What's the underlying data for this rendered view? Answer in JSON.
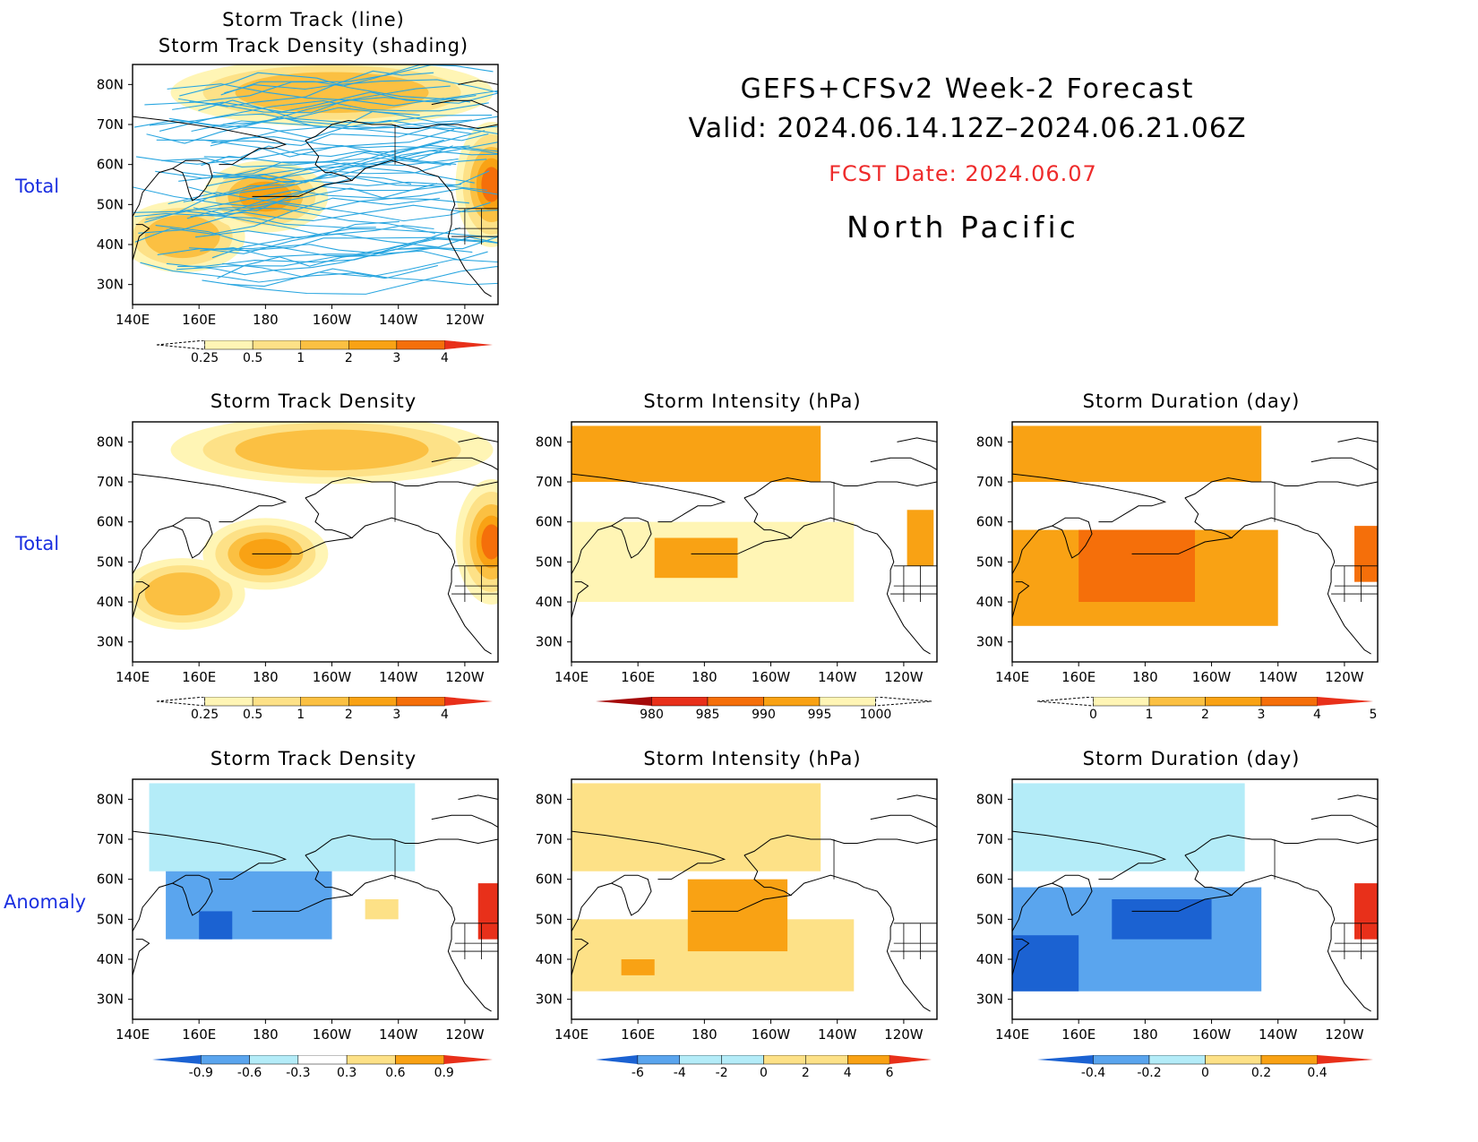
{
  "header": {
    "line1": "GEFS+CFSv2 Week-2 Forecast",
    "line2": "Valid: 2024.06.14.12Z–2024.06.21.06Z",
    "fcst": "FCST Date: 2024.06.07",
    "region": "North Pacific"
  },
  "row_labels": {
    "total1": "Total",
    "total2": "Total",
    "anomaly": "Anomaly"
  },
  "axes": {
    "x_ticks": [
      "140E",
      "160E",
      "180",
      "160W",
      "140W",
      "120W"
    ],
    "y_ticks": [
      "80N",
      "70N",
      "60N",
      "50N",
      "40N",
      "30N"
    ]
  },
  "colors": {
    "lt_yellow": "#fff5b5",
    "yellow": "#fde187",
    "lt_orange": "#fbc042",
    "orange": "#f9a214",
    "dk_orange": "#f56f0a",
    "red": "#e8301a",
    "dk_red": "#a50a0a",
    "lt_blue": "#b4ecf8",
    "blue": "#5aa5ee",
    "dk_blue": "#1b62d2",
    "track": "#29a6e0"
  },
  "panels": {
    "p0": {
      "title1": "Storm Track (line)",
      "title2": "Storm Track Density (shading)"
    },
    "p1": {
      "title": "Storm Track Density"
    },
    "p2": {
      "title": "Storm Intensity (hPa)"
    },
    "p3": {
      "title": "Storm Duration (day)"
    },
    "p4": {
      "title": "Storm Track Density"
    },
    "p5": {
      "title": "Storm Intensity (hPa)"
    },
    "p6": {
      "title": "Storm Duration (day)"
    }
  },
  "colorbars": {
    "density": [
      "0.25",
      "0.5",
      "1",
      "2",
      "3",
      "4"
    ],
    "intensity": [
      "980",
      "985",
      "990",
      "995",
      "1000"
    ],
    "duration": [
      "0",
      "1",
      "2",
      "3",
      "4",
      "5"
    ],
    "density_anom": [
      "-0.9",
      "-0.6",
      "-0.3",
      "0.3",
      "0.6",
      "0.9"
    ],
    "intensity_anom": [
      "-6",
      "-4",
      "-2",
      "0",
      "2",
      "4",
      "6"
    ],
    "duration_anom": [
      "-0.4",
      "-0.2",
      "0",
      "0.2",
      "0.4"
    ]
  },
  "chart_data": [
    {
      "type": "heatmap",
      "id": "p0",
      "title": "Storm Track (line) / Storm Track Density (shading)",
      "xlim": [
        140,
        250
      ],
      "ylim": [
        25,
        85
      ],
      "levels": [
        0.25,
        0.5,
        1,
        2,
        3,
        4
      ],
      "blobs": [
        {
          "lon": 200,
          "lat": 78,
          "value": 1.0
        },
        {
          "lon": 155,
          "lat": 42,
          "value": 1.5
        },
        {
          "lon": 180,
          "lat": 52,
          "value": 2.5
        },
        {
          "lon": 248,
          "lat": 55,
          "value": 3.5
        }
      ]
    },
    {
      "type": "heatmap",
      "id": "p1",
      "title": "Storm Track Density",
      "xlim": [
        140,
        250
      ],
      "ylim": [
        25,
        85
      ],
      "levels": [
        0.25,
        0.5,
        1,
        2,
        3,
        4
      ],
      "blobs": [
        {
          "lon": 200,
          "lat": 78,
          "value": 1.0
        },
        {
          "lon": 155,
          "lat": 42,
          "value": 1.5
        },
        {
          "lon": 180,
          "lat": 52,
          "value": 2.5
        },
        {
          "lon": 248,
          "lat": 55,
          "value": 3.5
        }
      ]
    },
    {
      "type": "heatmap",
      "id": "p2",
      "title": "Storm Intensity (hPa)",
      "xlim": [
        140,
        250
      ],
      "ylim": [
        25,
        85
      ],
      "levels": [
        980,
        985,
        990,
        995,
        1000
      ],
      "regions": [
        {
          "lon": [
            140,
            215
          ],
          "lat": [
            70,
            84
          ],
          "value": 992
        },
        {
          "lon": [
            140,
            225
          ],
          "lat": [
            40,
            60
          ],
          "value": 998
        },
        {
          "lon": [
            165,
            190
          ],
          "lat": [
            46,
            56
          ],
          "value": 992
        },
        {
          "lon": 245,
          "lat": 56,
          "value": 993
        }
      ]
    },
    {
      "type": "heatmap",
      "id": "p3",
      "title": "Storm Duration (day)",
      "xlim": [
        140,
        250
      ],
      "ylim": [
        25,
        85
      ],
      "levels": [
        0,
        1,
        2,
        3,
        4,
        5
      ],
      "regions": [
        {
          "lon": [
            140,
            215
          ],
          "lat": [
            70,
            84
          ],
          "value": 2.5
        },
        {
          "lon": [
            140,
            220
          ],
          "lat": [
            34,
            58
          ],
          "value": 2.5
        },
        {
          "lon": [
            160,
            195
          ],
          "lat": [
            40,
            58
          ],
          "value": 3.5
        },
        {
          "lon": 247,
          "lat": 52,
          "value": 3.0
        }
      ]
    },
    {
      "type": "heatmap",
      "id": "p4",
      "title": "Storm Track Density",
      "xlim": [
        140,
        250
      ],
      "ylim": [
        25,
        85
      ],
      "levels": [
        -0.9,
        -0.6,
        -0.3,
        0.3,
        0.6,
        0.9
      ],
      "regions": [
        {
          "lon": [
            145,
            225
          ],
          "lat": [
            62,
            84
          ],
          "value": -0.4
        },
        {
          "lon": [
            150,
            200
          ],
          "lat": [
            45,
            62
          ],
          "value": -0.7
        },
        {
          "lon": [
            160,
            170
          ],
          "lat": [
            45,
            52
          ],
          "value": -1.0
        },
        {
          "lon": [
            210,
            220
          ],
          "lat": [
            50,
            55
          ],
          "value": 0.4
        },
        {
          "lon": 248,
          "lat": 52,
          "value": 1.0
        }
      ]
    },
    {
      "type": "heatmap",
      "id": "p5",
      "title": "Storm Intensity (hPa)",
      "xlim": [
        140,
        250
      ],
      "ylim": [
        25,
        85
      ],
      "levels": [
        -6,
        -4,
        -2,
        0,
        2,
        4,
        6
      ],
      "regions": [
        {
          "lon": [
            140,
            215
          ],
          "lat": [
            62,
            84
          ],
          "value": 1.0
        },
        {
          "lon": [
            140,
            225
          ],
          "lat": [
            32,
            50
          ],
          "value": 1.0
        },
        {
          "lon": [
            175,
            205
          ],
          "lat": [
            42,
            60
          ],
          "value": 3.0
        },
        {
          "lon": [
            155,
            165
          ],
          "lat": [
            36,
            40
          ],
          "value": 3.0
        }
      ]
    },
    {
      "type": "heatmap",
      "id": "p6",
      "title": "Storm Duration (day)",
      "xlim": [
        140,
        250
      ],
      "ylim": [
        25,
        85
      ],
      "levels": [
        -0.4,
        -0.2,
        0,
        0.2,
        0.4
      ],
      "regions": [
        {
          "lon": [
            140,
            210
          ],
          "lat": [
            62,
            84
          ],
          "value": -0.15
        },
        {
          "lon": [
            140,
            215
          ],
          "lat": [
            32,
            58
          ],
          "value": -0.3
        },
        {
          "lon": [
            140,
            160
          ],
          "lat": [
            32,
            46
          ],
          "value": -0.45
        },
        {
          "lon": [
            170,
            200
          ],
          "lat": [
            45,
            55
          ],
          "value": -0.45
        },
        {
          "lon": 247,
          "lat": 52,
          "value": 0.45
        }
      ]
    }
  ]
}
